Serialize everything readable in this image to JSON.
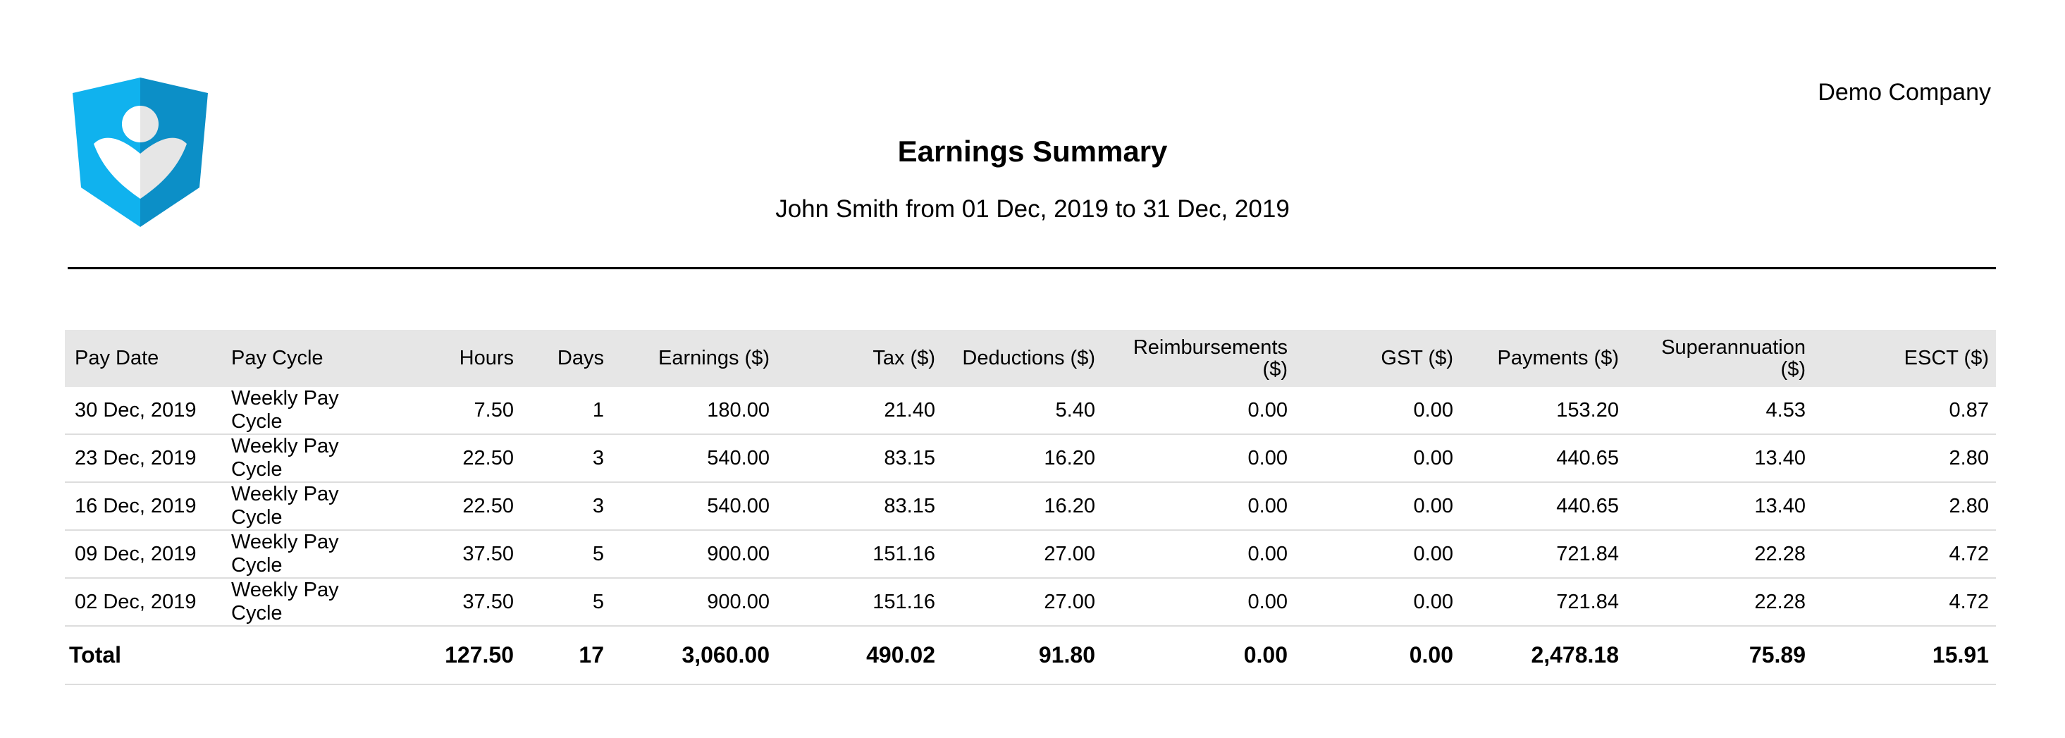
{
  "header": {
    "company": "Demo Company",
    "title": "Earnings Summary",
    "subtitle": "John Smith from 01 Dec, 2019 to 31 Dec, 2019"
  },
  "logo": {
    "icon": "shield-person-check-icon",
    "colors": {
      "primary": "#10b2ee",
      "shade": "#0c8fc7",
      "figure": "#ffffff",
      "figure_shade": "#e6e6e6"
    }
  },
  "table": {
    "columns": {
      "pay_date": "Pay Date",
      "pay_cycle": "Pay Cycle",
      "hours": "Hours",
      "days": "Days",
      "earnings": "Earnings ($)",
      "tax": "Tax ($)",
      "deductions": "Deductions ($)",
      "reimbursements_line1": "Reimbursements",
      "reimbursements_line2": "($)",
      "gst": "GST ($)",
      "payments": "Payments ($)",
      "superannuation": "Superannuation ($)",
      "esct": "ESCT ($)"
    },
    "rows": [
      {
        "pay_date": "30 Dec, 2019",
        "pay_cycle": "Weekly Pay Cycle",
        "hours": "7.50",
        "days": "1",
        "earnings": "180.00",
        "tax": "21.40",
        "deductions": "5.40",
        "reimbursements": "0.00",
        "gst": "0.00",
        "payments": "153.20",
        "superannuation": "4.53",
        "esct": "0.87"
      },
      {
        "pay_date": "23 Dec, 2019",
        "pay_cycle": "Weekly Pay Cycle",
        "hours": "22.50",
        "days": "3",
        "earnings": "540.00",
        "tax": "83.15",
        "deductions": "16.20",
        "reimbursements": "0.00",
        "gst": "0.00",
        "payments": "440.65",
        "superannuation": "13.40",
        "esct": "2.80"
      },
      {
        "pay_date": "16 Dec, 2019",
        "pay_cycle": "Weekly Pay Cycle",
        "hours": "22.50",
        "days": "3",
        "earnings": "540.00",
        "tax": "83.15",
        "deductions": "16.20",
        "reimbursements": "0.00",
        "gst": "0.00",
        "payments": "440.65",
        "superannuation": "13.40",
        "esct": "2.80"
      },
      {
        "pay_date": "09 Dec, 2019",
        "pay_cycle": "Weekly Pay Cycle",
        "hours": "37.50",
        "days": "5",
        "earnings": "900.00",
        "tax": "151.16",
        "deductions": "27.00",
        "reimbursements": "0.00",
        "gst": "0.00",
        "payments": "721.84",
        "superannuation": "22.28",
        "esct": "4.72"
      },
      {
        "pay_date": "02 Dec, 2019",
        "pay_cycle": "Weekly Pay Cycle",
        "hours": "37.50",
        "days": "5",
        "earnings": "900.00",
        "tax": "151.16",
        "deductions": "27.00",
        "reimbursements": "0.00",
        "gst": "0.00",
        "payments": "721.84",
        "superannuation": "22.28",
        "esct": "4.72"
      }
    ],
    "total": {
      "label": "Total",
      "hours": "127.50",
      "days": "17",
      "earnings": "3,060.00",
      "tax": "490.02",
      "deductions": "91.80",
      "reimbursements": "0.00",
      "gst": "0.00",
      "payments": "2,478.18",
      "superannuation": "75.89",
      "esct": "15.91"
    }
  }
}
